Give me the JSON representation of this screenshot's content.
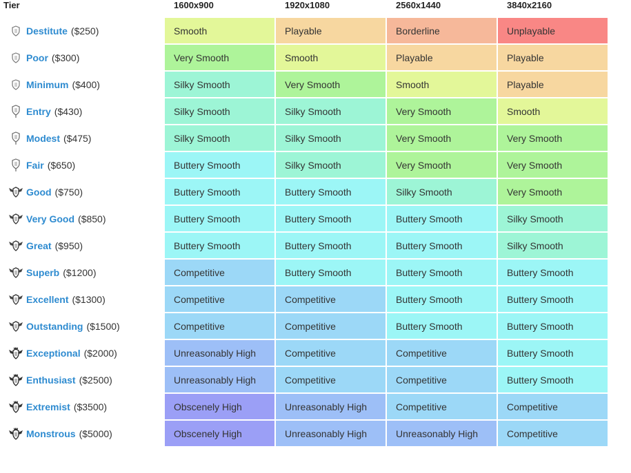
{
  "header": {
    "tier_label": "Tier",
    "resolutions": [
      "1600x900",
      "1920x1080",
      "2560x1440",
      "3840x2160"
    ]
  },
  "colors": {
    "Unplayable": "#f98785",
    "Borderline": "#f6b89a",
    "Playable": "#f7d7a0",
    "Smooth": "#e3f799",
    "Very Smooth": "#aef49a",
    "Silky Smooth": "#9df5d6",
    "Buttery Smooth": "#9cf6f6",
    "Competitive": "#9cd8f7",
    "Unreasonably High": "#9dbff7",
    "Obscenely High": "#9b9ff6"
  },
  "rows": [
    {
      "name": "Destitute",
      "price": "($250)",
      "icon": "shield-small-icon",
      "cells": [
        "Smooth",
        "Playable",
        "Borderline",
        "Unplayable"
      ]
    },
    {
      "name": "Poor",
      "price": "($300)",
      "icon": "shield-small-icon",
      "cells": [
        "Very Smooth",
        "Smooth",
        "Playable",
        "Playable"
      ]
    },
    {
      "name": "Minimum",
      "price": "($400)",
      "icon": "shield-small-icon",
      "cells": [
        "Silky Smooth",
        "Very Smooth",
        "Smooth",
        "Playable"
      ]
    },
    {
      "name": "Entry",
      "price": "($430)",
      "icon": "shield-medal-icon",
      "cells": [
        "Silky Smooth",
        "Silky Smooth",
        "Very Smooth",
        "Smooth"
      ]
    },
    {
      "name": "Modest",
      "price": "($475)",
      "icon": "shield-medal-icon",
      "cells": [
        "Silky Smooth",
        "Silky Smooth",
        "Very Smooth",
        "Very Smooth"
      ]
    },
    {
      "name": "Fair",
      "price": "($650)",
      "icon": "shield-medal-icon",
      "cells": [
        "Buttery Smooth",
        "Silky Smooth",
        "Very Smooth",
        "Very Smooth"
      ]
    },
    {
      "name": "Good",
      "price": "($750)",
      "icon": "winged-shield-icon",
      "cells": [
        "Buttery Smooth",
        "Buttery Smooth",
        "Silky Smooth",
        "Very Smooth"
      ]
    },
    {
      "name": "Very Good",
      "price": "($850)",
      "icon": "winged-shield-icon",
      "cells": [
        "Buttery Smooth",
        "Buttery Smooth",
        "Buttery Smooth",
        "Silky Smooth"
      ]
    },
    {
      "name": "Great",
      "price": "($950)",
      "icon": "winged-shield-icon",
      "cells": [
        "Buttery Smooth",
        "Buttery Smooth",
        "Buttery Smooth",
        "Silky Smooth"
      ]
    },
    {
      "name": "Superb",
      "price": "($1200)",
      "icon": "winged-shield-icon",
      "cells": [
        "Competitive",
        "Buttery Smooth",
        "Buttery Smooth",
        "Buttery Smooth"
      ]
    },
    {
      "name": "Excellent",
      "price": "($1300)",
      "icon": "winged-shield-icon",
      "cells": [
        "Competitive",
        "Competitive",
        "Buttery Smooth",
        "Buttery Smooth"
      ]
    },
    {
      "name": "Outstanding",
      "price": "($1500)",
      "icon": "winged-shield-icon",
      "cells": [
        "Competitive",
        "Competitive",
        "Buttery Smooth",
        "Buttery Smooth"
      ]
    },
    {
      "name": "Exceptional",
      "price": "($2000)",
      "icon": "crowned-winged-shield-icon",
      "cells": [
        "Unreasonably High",
        "Competitive",
        "Competitive",
        "Buttery Smooth"
      ]
    },
    {
      "name": "Enthusiast",
      "price": "($2500)",
      "icon": "crowned-winged-shield-icon",
      "cells": [
        "Unreasonably High",
        "Competitive",
        "Competitive",
        "Buttery Smooth"
      ]
    },
    {
      "name": "Extremist",
      "price": "($3500)",
      "icon": "crowned-winged-shield-icon",
      "cells": [
        "Obscenely High",
        "Unreasonably High",
        "Competitive",
        "Competitive"
      ]
    },
    {
      "name": "Monstrous",
      "price": "($5000)",
      "icon": "crowned-winged-shield-icon",
      "cells": [
        "Obscenely High",
        "Unreasonably High",
        "Unreasonably High",
        "Competitive"
      ]
    }
  ]
}
